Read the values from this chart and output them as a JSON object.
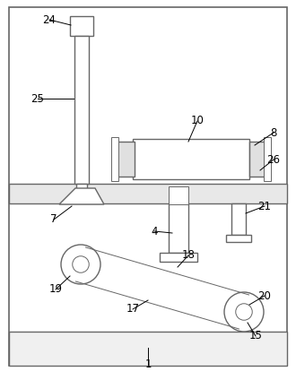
{
  "fig_width": 3.3,
  "fig_height": 4.24,
  "dpi": 100,
  "bg_color": "#ffffff",
  "lc": "#666666",
  "lw": 1.0,
  "tlw": 0.7
}
